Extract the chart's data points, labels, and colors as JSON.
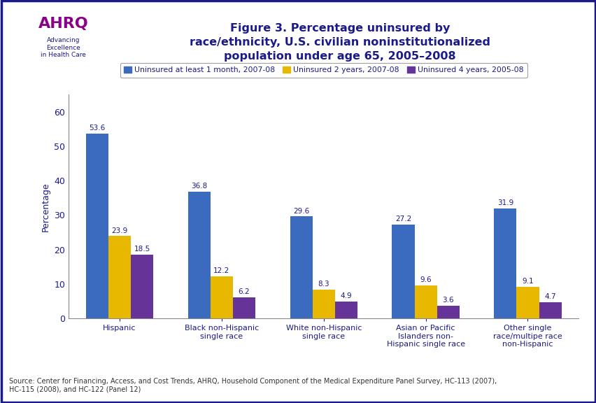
{
  "title": "Figure 3. Percentage uninsured by\nrace/ethnicity, U.S. civilian noninstitutionalized\npopulation under age 65, 2005–2008",
  "ylabel": "Percentage",
  "categories": [
    "Hispanic",
    "Black non-Hispanic\nsingle race",
    "White non-Hispanic\nsingle race",
    "Asian or Pacific\nIslanders non-\nHispanic single race",
    "Other single\nrace/multipe race\nnon-Hispanic"
  ],
  "series": [
    {
      "label": "Uninsured at least 1 month, 2007-08",
      "color": "#3B6BBF",
      "values": [
        53.6,
        36.8,
        29.6,
        27.2,
        31.9
      ]
    },
    {
      "label": "Uninsured 2 years, 2007-08",
      "color": "#E8B800",
      "values": [
        23.9,
        12.2,
        8.3,
        9.6,
        9.1
      ]
    },
    {
      "label": "Uninsured 4 years, 2005-08",
      "color": "#663399",
      "values": [
        18.5,
        6.2,
        4.9,
        3.6,
        4.7
      ]
    }
  ],
  "ylim": [
    0,
    65
  ],
  "yticks": [
    0,
    10,
    20,
    30,
    40,
    50,
    60
  ],
  "background_color": "#FFFFFF",
  "border_color": "#1a1a8c",
  "title_color": "#1a1a8c",
  "axis_label_color": "#1a1a8c",
  "tick_label_color": "#1a1a8c",
  "value_label_color": "#1a1a8c",
  "source_text": "Source: Center for Financing, Access, and Cost Trends, AHRQ, Household Component of the Medical Expenditure Panel Survey, HC-113 (2007),\nHC-115 (2008), and HC-122 (Panel 12)",
  "separator_color": "#1a3a8c",
  "logo_bg_color": "#2288BB",
  "bar_width": 0.22
}
